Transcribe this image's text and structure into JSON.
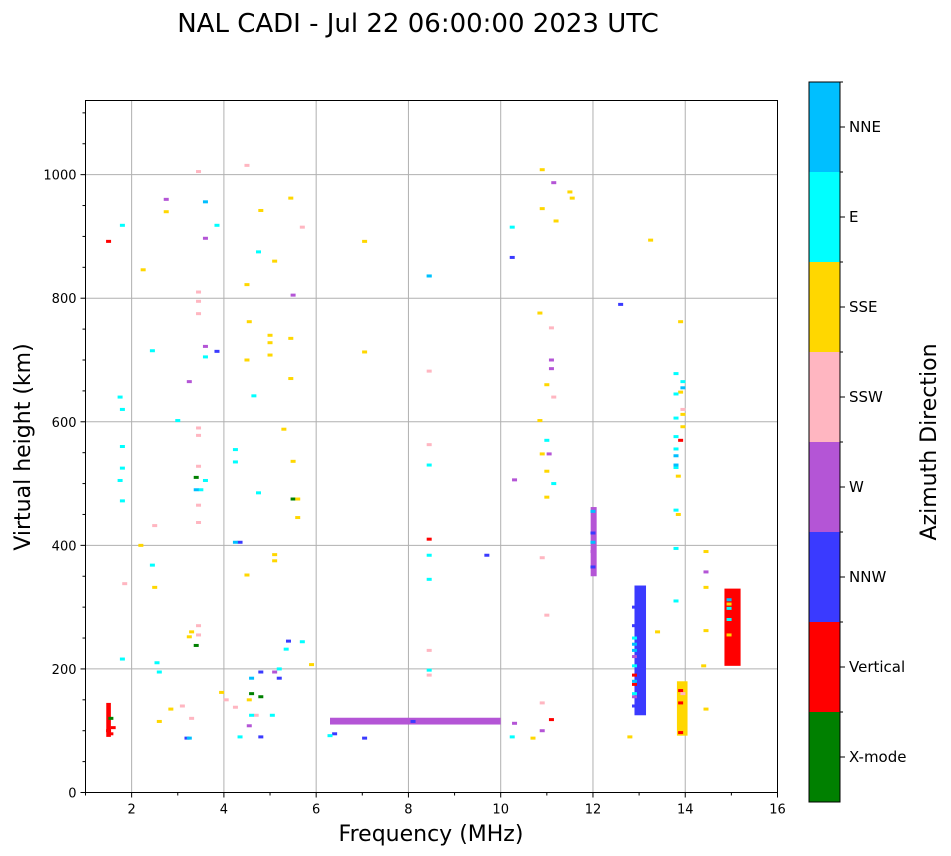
{
  "chart_data": {
    "type": "scatter",
    "title": "NAL CADI - Jul 22 06:00:00 2023 UTC",
    "xlabel": "Frequency (MHz)",
    "ylabel": "Virtual height (km)",
    "xlim": [
      1,
      16
    ],
    "ylim": [
      0,
      1120
    ],
    "xticks": [
      2,
      4,
      6,
      8,
      10,
      12,
      14,
      16
    ],
    "yticks": [
      0,
      200,
      400,
      600,
      800,
      1000
    ],
    "grid": true,
    "colorbar": {
      "title": "Azimuth Direction",
      "categories": [
        {
          "name": "X-mode",
          "color": "#008000"
        },
        {
          "name": "Vertical",
          "color": "#ff0000"
        },
        {
          "name": "NNW",
          "color": "#3a3aff"
        },
        {
          "name": "W",
          "color": "#b455d6"
        },
        {
          "name": "SSW",
          "color": "#ffb6c1"
        },
        {
          "name": "SSE",
          "color": "#ffd700"
        },
        {
          "name": "E",
          "color": "#00ffff"
        },
        {
          "name": "NNE",
          "color": "#00bfff"
        }
      ]
    },
    "series": [
      {
        "name": "X-mode",
        "points": [
          [
            1.55,
            120
          ],
          [
            3.4,
            510
          ],
          [
            3.4,
            238
          ],
          [
            4.8,
            155
          ],
          [
            5.5,
            475
          ],
          [
            4.6,
            160
          ]
        ]
      },
      {
        "name": "Vertical",
        "points": [
          [
            1.5,
            892
          ],
          [
            1.5,
            100
          ],
          [
            1.55,
            95
          ],
          [
            1.6,
            105
          ],
          [
            8.45,
            410
          ],
          [
            11.1,
            118
          ],
          [
            13.9,
            570
          ],
          [
            13.9,
            97
          ],
          [
            13.9,
            145
          ],
          [
            13.9,
            165
          ],
          [
            14.95,
            215
          ],
          [
            14.95,
            240
          ],
          [
            14.95,
            265
          ],
          [
            14.95,
            290
          ],
          [
            14.95,
            320
          ],
          [
            12.9,
            190
          ],
          [
            12.9,
            175
          ]
        ]
      },
      {
        "name": "NNW",
        "points": [
          [
            3.85,
            714
          ],
          [
            4.35,
            405
          ],
          [
            4.8,
            195
          ],
          [
            5.2,
            185
          ],
          [
            5.4,
            245
          ],
          [
            6.4,
            95
          ],
          [
            8.1,
            115
          ],
          [
            10.25,
            866
          ],
          [
            12.6,
            790
          ],
          [
            4.8,
            90
          ],
          [
            3.2,
            88
          ],
          [
            7.05,
            88
          ],
          [
            9.7,
            384
          ],
          [
            12.9,
            300
          ],
          [
            12.9,
            270
          ],
          [
            12.9,
            140
          ],
          [
            12.0,
            420
          ],
          [
            12.0,
            365
          ]
        ]
      },
      {
        "name": "W",
        "points": [
          [
            2.75,
            960
          ],
          [
            3.6,
            897
          ],
          [
            3.25,
            665
          ],
          [
            3.6,
            722
          ],
          [
            4.55,
            108
          ],
          [
            5.1,
            195
          ],
          [
            5.5,
            805
          ],
          [
            6.7,
            117
          ],
          [
            7.0,
            117
          ],
          [
            7.3,
            117
          ],
          [
            7.6,
            117
          ],
          [
            7.9,
            117
          ],
          [
            8.3,
            117
          ],
          [
            8.7,
            117
          ],
          [
            9.0,
            117
          ],
          [
            9.3,
            117
          ],
          [
            9.6,
            117
          ],
          [
            10.3,
            112
          ],
          [
            10.3,
            506
          ],
          [
            10.9,
            100
          ],
          [
            11.05,
            548
          ],
          [
            11.15,
            987
          ],
          [
            11.1,
            700
          ],
          [
            11.1,
            686
          ],
          [
            14.45,
            357
          ],
          [
            12.9,
            220
          ],
          [
            12.9,
            155
          ],
          [
            12.0,
            390
          ]
        ]
      },
      {
        "name": "SSW",
        "points": [
          [
            3.45,
            1005
          ],
          [
            4.5,
            1015
          ],
          [
            5.7,
            915
          ],
          [
            3.45,
            810
          ],
          [
            3.45,
            795
          ],
          [
            3.45,
            775
          ],
          [
            3.45,
            590
          ],
          [
            3.45,
            578
          ],
          [
            3.45,
            528
          ],
          [
            3.45,
            465
          ],
          [
            3.45,
            437
          ],
          [
            3.45,
            270
          ],
          [
            3.45,
            255
          ],
          [
            4.25,
            138
          ],
          [
            4.7,
            125
          ],
          [
            8.45,
            682
          ],
          [
            8.45,
            563
          ],
          [
            8.45,
            230
          ],
          [
            8.45,
            190
          ],
          [
            10.9,
            145
          ],
          [
            10.9,
            380
          ],
          [
            11.0,
            287
          ],
          [
            11.1,
            752
          ],
          [
            11.15,
            640
          ],
          [
            2.5,
            432
          ],
          [
            1.85,
            338
          ],
          [
            3.1,
            140
          ],
          [
            3.3,
            120
          ],
          [
            4.05,
            150
          ],
          [
            13.95,
            620
          ],
          [
            13.95,
            160
          ]
        ]
      },
      {
        "name": "SSE",
        "points": [
          [
            2.75,
            940
          ],
          [
            2.25,
            846
          ],
          [
            4.5,
            822
          ],
          [
            4.8,
            942
          ],
          [
            5.1,
            860
          ],
          [
            5.45,
            962
          ],
          [
            7.05,
            892
          ],
          [
            7.05,
            713
          ],
          [
            4.55,
            762
          ],
          [
            5.0,
            740
          ],
          [
            5.0,
            728
          ],
          [
            5.45,
            735
          ],
          [
            5.0,
            708
          ],
          [
            5.45,
            670
          ],
          [
            5.3,
            588
          ],
          [
            5.5,
            536
          ],
          [
            5.6,
            475
          ],
          [
            5.6,
            445
          ],
          [
            4.5,
            700
          ],
          [
            2.2,
            400
          ],
          [
            2.5,
            332
          ],
          [
            3.25,
            252
          ],
          [
            3.3,
            260
          ],
          [
            5.1,
            385
          ],
          [
            5.1,
            375
          ],
          [
            4.5,
            352
          ],
          [
            5.9,
            207
          ],
          [
            2.6,
            115
          ],
          [
            2.85,
            135
          ],
          [
            3.95,
            162
          ],
          [
            4.55,
            150
          ],
          [
            10.9,
            1008
          ],
          [
            10.9,
            945
          ],
          [
            10.85,
            776
          ],
          [
            10.85,
            602
          ],
          [
            10.9,
            548
          ],
          [
            11.0,
            660
          ],
          [
            11.0,
            520
          ],
          [
            11.0,
            478
          ],
          [
            11.5,
            972
          ],
          [
            11.55,
            962
          ],
          [
            11.2,
            925
          ],
          [
            13.25,
            894
          ],
          [
            13.9,
            762
          ],
          [
            13.9,
            648
          ],
          [
            13.95,
            612
          ],
          [
            13.95,
            592
          ],
          [
            13.85,
            512
          ],
          [
            13.85,
            450
          ],
          [
            14.45,
            390
          ],
          [
            14.45,
            332
          ],
          [
            14.45,
            262
          ],
          [
            14.4,
            205
          ],
          [
            14.45,
            135
          ],
          [
            12.8,
            90
          ],
          [
            10.7,
            88
          ],
          [
            13.95,
            130
          ],
          [
            13.95,
            110
          ],
          [
            13.95,
            175
          ],
          [
            14.95,
            255
          ],
          [
            14.95,
            305
          ],
          [
            13.4,
            260
          ]
        ]
      },
      {
        "name": "E",
        "points": [
          [
            1.8,
            918
          ],
          [
            2.45,
            715
          ],
          [
            1.75,
            640
          ],
          [
            1.8,
            620
          ],
          [
            1.8,
            560
          ],
          [
            1.8,
            525
          ],
          [
            1.75,
            505
          ],
          [
            1.8,
            472
          ],
          [
            1.8,
            216
          ],
          [
            2.45,
            368
          ],
          [
            2.55,
            210
          ],
          [
            2.6,
            195
          ],
          [
            3.0,
            602
          ],
          [
            3.5,
            490
          ],
          [
            3.6,
            505
          ],
          [
            3.6,
            705
          ],
          [
            3.85,
            918
          ],
          [
            4.25,
            555
          ],
          [
            4.25,
            535
          ],
          [
            4.65,
            642
          ],
          [
            4.75,
            875
          ],
          [
            4.75,
            485
          ],
          [
            4.35,
            90
          ],
          [
            4.6,
            125
          ],
          [
            5.05,
            125
          ],
          [
            5.35,
            232
          ],
          [
            5.2,
            200
          ],
          [
            5.7,
            244
          ],
          [
            6.3,
            92
          ],
          [
            8.45,
            836
          ],
          [
            8.45,
            530
          ],
          [
            8.45,
            384
          ],
          [
            8.45,
            345
          ],
          [
            8.45,
            198
          ],
          [
            10.25,
            915
          ],
          [
            10.25,
            90
          ],
          [
            11.0,
            570
          ],
          [
            11.15,
            500
          ],
          [
            13.8,
            678
          ],
          [
            13.95,
            665
          ],
          [
            13.8,
            645
          ],
          [
            13.8,
            606
          ],
          [
            13.8,
            576
          ],
          [
            13.8,
            556
          ],
          [
            13.8,
            526
          ],
          [
            13.8,
            457
          ],
          [
            13.8,
            395
          ],
          [
            13.8,
            310
          ],
          [
            12.9,
            250
          ],
          [
            12.9,
            205
          ],
          [
            12.9,
            160
          ],
          [
            14.95,
            298
          ],
          [
            14.95,
            280
          ]
        ]
      },
      {
        "name": "NNE",
        "points": [
          [
            3.6,
            956
          ],
          [
            3.4,
            490
          ],
          [
            3.25,
            88
          ],
          [
            4.25,
            405
          ],
          [
            4.6,
            185
          ],
          [
            8.45,
            836
          ],
          [
            12.0,
            455
          ],
          [
            12.0,
            405
          ],
          [
            12.9,
            240
          ],
          [
            12.9,
            230
          ],
          [
            12.9,
            180
          ],
          [
            13.8,
            530
          ],
          [
            13.95,
            655
          ],
          [
            13.8,
            545
          ],
          [
            14.95,
            312
          ]
        ]
      }
    ],
    "bars": [
      {
        "name": "W",
        "x0": 6.3,
        "x1": 10.0,
        "y0": 110,
        "y1": 121
      },
      {
        "name": "NNW",
        "x0": 12.9,
        "x1": 13.15,
        "y0": 125,
        "y1": 335
      },
      {
        "name": "W",
        "x0": 11.95,
        "x1": 12.08,
        "y0": 350,
        "y1": 462
      },
      {
        "name": "Vertical",
        "x0": 14.85,
        "x1": 15.2,
        "y0": 205,
        "y1": 330
      },
      {
        "name": "SSE",
        "x0": 13.82,
        "x1": 14.05,
        "y0": 92,
        "y1": 180
      },
      {
        "name": "Vertical",
        "x0": 1.45,
        "x1": 1.55,
        "y0": 90,
        "y1": 145
      }
    ]
  }
}
